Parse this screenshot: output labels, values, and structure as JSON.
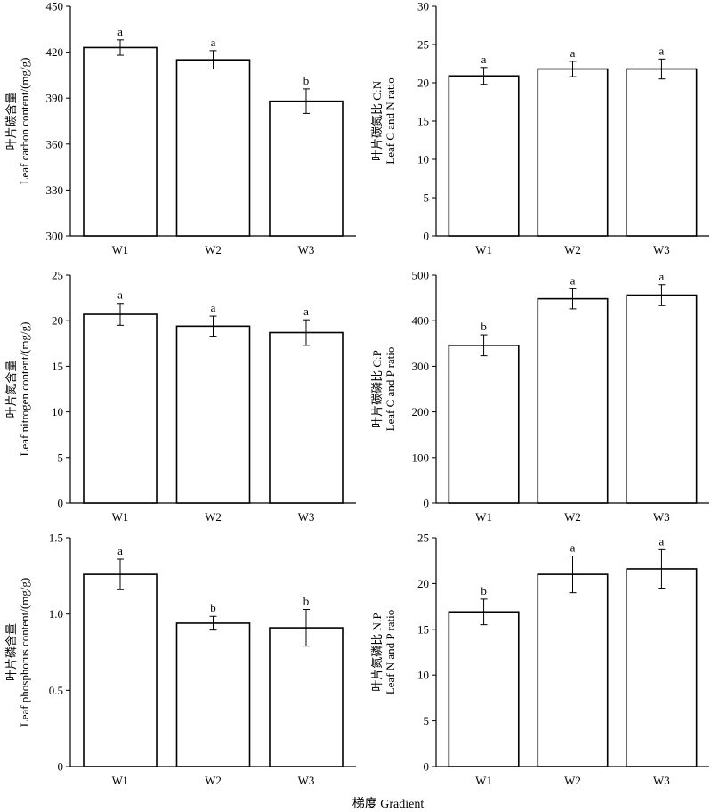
{
  "figure": {
    "xlabel": "梯度 Gradient"
  },
  "chart_data": [
    {
      "type": "bar",
      "categories": [
        "W1",
        "W2",
        "W3"
      ],
      "values": [
        423,
        415,
        388
      ],
      "errors": [
        5,
        6,
        8
      ],
      "significance": [
        "a",
        "a",
        "b"
      ],
      "ylabel_cn": "叶片碳含量",
      "ylabel_en": "Leaf carbon content/(mg/g)",
      "ylim": [
        300,
        450
      ],
      "yticks": [
        300,
        330,
        360,
        390,
        420,
        450
      ]
    },
    {
      "type": "bar",
      "categories": [
        "W1",
        "W2",
        "W3"
      ],
      "values": [
        20.9,
        21.8,
        21.8
      ],
      "errors": [
        1.1,
        1.0,
        1.3
      ],
      "significance": [
        "a",
        "a",
        "a"
      ],
      "ylabel_cn": "叶片碳氮比 C:N",
      "ylabel_en": "Leaf C and N ratio",
      "ylim": [
        0,
        30
      ],
      "yticks": [
        0,
        5,
        10,
        15,
        20,
        25,
        30
      ]
    },
    {
      "type": "bar",
      "categories": [
        "W1",
        "W2",
        "W3"
      ],
      "values": [
        20.7,
        19.4,
        18.7
      ],
      "errors": [
        1.2,
        1.1,
        1.4
      ],
      "significance": [
        "a",
        "a",
        "a"
      ],
      "ylabel_cn": "叶片氮含量",
      "ylabel_en": "Leaf nitrogen content/(mg/g)",
      "ylim": [
        0,
        25
      ],
      "yticks": [
        0,
        5,
        10,
        15,
        20,
        25
      ]
    },
    {
      "type": "bar",
      "categories": [
        "W1",
        "W2",
        "W3"
      ],
      "values": [
        346,
        448,
        456
      ],
      "errors": [
        23,
        22,
        23
      ],
      "significance": [
        "b",
        "a",
        "a"
      ],
      "ylabel_cn": "叶片碳磷比 C:P",
      "ylabel_en": "Leaf C and P ratio",
      "ylim": [
        0,
        500
      ],
      "yticks": [
        0,
        100,
        200,
        300,
        400,
        500
      ]
    },
    {
      "type": "bar",
      "categories": [
        "W1",
        "W2",
        "W3"
      ],
      "values": [
        1.26,
        0.94,
        0.91
      ],
      "errors": [
        0.1,
        0.045,
        0.12
      ],
      "significance": [
        "a",
        "b",
        "b"
      ],
      "ylabel_cn": "叶片磷含量",
      "ylabel_en": "Leaf phosphorus content/(mg/g)",
      "ylim": [
        0,
        1.5
      ],
      "yticks": [
        0,
        0.5,
        1.0,
        1.5
      ],
      "ytick_labels": [
        "0",
        "0.5",
        "1.0",
        "1.5"
      ]
    },
    {
      "type": "bar",
      "categories": [
        "W1",
        "W2",
        "W3"
      ],
      "values": [
        16.9,
        21.0,
        21.6
      ],
      "errors": [
        1.4,
        2.0,
        2.1
      ],
      "significance": [
        "b",
        "a",
        "a"
      ],
      "ylabel_cn": "叶片氮磷比 N:P",
      "ylabel_en": "Leaf N and P ratio",
      "ylim": [
        0,
        25
      ],
      "yticks": [
        0,
        5,
        10,
        15,
        20,
        25
      ]
    }
  ]
}
